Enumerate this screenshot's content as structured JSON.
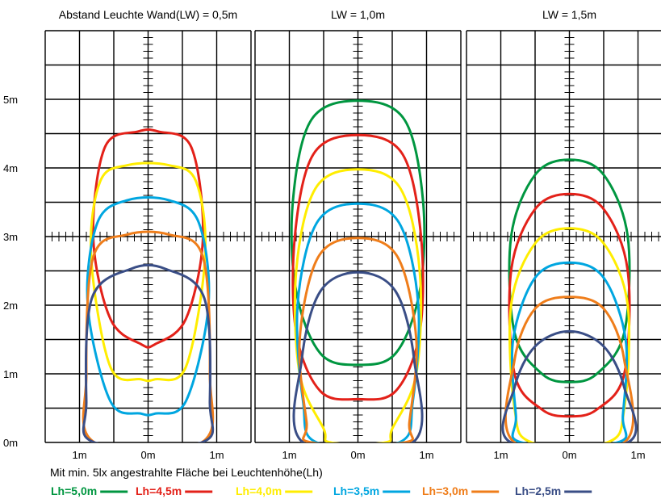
{
  "chart_data": {
    "type": "line",
    "caption": "Mit min. 5lx angestrahlte Fläche bei Leuchtenhöhe(Lh)",
    "y_ticks": [
      "0m",
      "1m",
      "2m",
      "3m",
      "4m",
      "5m"
    ],
    "x_ticks": [
      "1m",
      "0m",
      "1m"
    ],
    "ylim": [
      0,
      6
    ],
    "xlim": [
      -1.5,
      1.5
    ],
    "grid": true,
    "legend_position": "bottom",
    "panels": [
      {
        "title": "Abstand Leuchte Wand(LW) = 0,5m",
        "series": [
          {
            "name": "Lh=4,5m",
            "color": "#e32119",
            "outline": [
              [
                -0.15,
                4.53
              ],
              [
                0.15,
                4.53
              ],
              [
                0.63,
                4.3
              ],
              [
                0.8,
                3.0
              ],
              [
                0.55,
                1.8
              ],
              [
                0.1,
                1.43
              ],
              [
                -0.1,
                1.43
              ],
              [
                -0.55,
                1.8
              ],
              [
                -0.8,
                3.0
              ],
              [
                -0.63,
                4.3
              ]
            ]
          },
          {
            "name": "Lh=4,0m",
            "color": "#ffed00",
            "outline": [
              [
                -0.3,
                4.04
              ],
              [
                0.3,
                4.04
              ],
              [
                0.7,
                3.8
              ],
              [
                0.83,
                2.7
              ],
              [
                0.55,
                1.1
              ],
              [
                0.1,
                0.92
              ],
              [
                -0.1,
                0.92
              ],
              [
                -0.55,
                1.1
              ],
              [
                -0.83,
                2.7
              ],
              [
                -0.7,
                3.8
              ]
            ]
          },
          {
            "name": "Lh=3,5m",
            "color": "#00a6e0",
            "outline": [
              [
                -0.3,
                3.53
              ],
              [
                0.3,
                3.53
              ],
              [
                0.74,
                3.2
              ],
              [
                0.88,
                2.0
              ],
              [
                0.55,
                0.6
              ],
              [
                0.1,
                0.42
              ],
              [
                -0.1,
                0.42
              ],
              [
                -0.55,
                0.6
              ],
              [
                -0.88,
                2.0
              ],
              [
                -0.74,
                3.2
              ]
            ]
          },
          {
            "name": "Lh=3,0m",
            "color": "#ef7d1a",
            "outline": [
              [
                -0.3,
                3.03
              ],
              [
                0.3,
                3.03
              ],
              [
                0.8,
                2.7
              ],
              [
                0.9,
                1.0
              ],
              [
                0.78,
                0
              ],
              [
                -0.78,
                0
              ],
              [
                -0.9,
                1.0
              ],
              [
                -0.8,
                2.7
              ]
            ]
          },
          {
            "name": "Lh=2,5m",
            "color": "#3a4e86",
            "outline": [
              [
                -0.25,
                2.53
              ],
              [
                0.25,
                2.53
              ],
              [
                0.82,
                2.1
              ],
              [
                0.9,
                0.6
              ],
              [
                0.78,
                0
              ],
              [
                -0.78,
                0
              ],
              [
                -0.9,
                0.6
              ],
              [
                -0.82,
                2.1
              ]
            ]
          }
        ]
      },
      {
        "title": "LW = 1,0m",
        "series": [
          {
            "name": "Lh=5,0m",
            "color": "#009640",
            "outline": [
              [
                0,
                4.98
              ],
              [
                0.68,
                4.7
              ],
              [
                0.95,
                3.5
              ],
              [
                0.9,
                2.2
              ],
              [
                0.55,
                1.3
              ],
              [
                0,
                1.13
              ],
              [
                -0.55,
                1.3
              ],
              [
                -0.9,
                2.2
              ],
              [
                -0.95,
                3.5
              ],
              [
                -0.68,
                4.7
              ]
            ]
          },
          {
            "name": "Lh=4,5m",
            "color": "#e32119",
            "outline": [
              [
                0,
                4.48
              ],
              [
                0.65,
                4.2
              ],
              [
                0.92,
                3.0
              ],
              [
                0.9,
                1.6
              ],
              [
                0.55,
                0.75
              ],
              [
                0,
                0.63
              ],
              [
                -0.55,
                0.75
              ],
              [
                -0.9,
                1.6
              ],
              [
                -0.92,
                3.0
              ],
              [
                -0.65,
                4.2
              ]
            ]
          },
          {
            "name": "Lh=4,0m",
            "color": "#ffed00",
            "outline": [
              [
                0,
                3.98
              ],
              [
                0.62,
                3.7
              ],
              [
                0.9,
                2.5
              ],
              [
                0.85,
                1.0
              ],
              [
                0.5,
                0.2
              ],
              [
                0.4,
                0
              ],
              [
                -0.4,
                0
              ],
              [
                -0.5,
                0.2
              ],
              [
                -0.85,
                1.0
              ],
              [
                -0.9,
                2.5
              ],
              [
                -0.62,
                3.7
              ]
            ]
          },
          {
            "name": "Lh=3,5m",
            "color": "#00a6e0",
            "outline": [
              [
                0,
                3.48
              ],
              [
                0.6,
                3.2
              ],
              [
                0.88,
                2.0
              ],
              [
                0.8,
                0.6
              ],
              [
                0.6,
                0
              ],
              [
                -0.6,
                0
              ],
              [
                -0.8,
                0.6
              ],
              [
                -0.88,
                2.0
              ],
              [
                -0.6,
                3.2
              ]
            ]
          },
          {
            "name": "Lh=3,0m",
            "color": "#ef7d1a",
            "outline": [
              [
                0,
                2.98
              ],
              [
                0.58,
                2.7
              ],
              [
                0.85,
                1.5
              ],
              [
                0.75,
                0.3
              ],
              [
                0.68,
                0
              ],
              [
                -0.68,
                0
              ],
              [
                -0.75,
                0.3
              ],
              [
                -0.85,
                1.5
              ],
              [
                -0.58,
                2.7
              ]
            ]
          },
          {
            "name": "Lh=2,5m",
            "color": "#3a4e86",
            "outline": [
              [
                0,
                2.48
              ],
              [
                0.55,
                2.2
              ],
              [
                0.82,
                1.2
              ],
              [
                0.8,
                0
              ],
              [
                -0.8,
                0
              ],
              [
                -0.82,
                1.2
              ],
              [
                -0.55,
                2.2
              ]
            ]
          }
        ]
      },
      {
        "title": "LW = 1,5m",
        "series": [
          {
            "name": "Lh=5,0m",
            "color": "#009640",
            "outline": [
              [
                0,
                4.12
              ],
              [
                0.5,
                3.9
              ],
              [
                0.85,
                3.0
              ],
              [
                0.8,
                1.6
              ],
              [
                0.4,
                1.0
              ],
              [
                0,
                0.88
              ],
              [
                -0.4,
                1.0
              ],
              [
                -0.8,
                1.6
              ],
              [
                -0.85,
                3.0
              ],
              [
                -0.5,
                3.9
              ]
            ]
          },
          {
            "name": "Lh=4,5m",
            "color": "#e32119",
            "outline": [
              [
                0,
                3.62
              ],
              [
                0.5,
                3.4
              ],
              [
                0.85,
                2.5
              ],
              [
                0.8,
                1.0
              ],
              [
                0.4,
                0.48
              ],
              [
                0,
                0.38
              ],
              [
                -0.4,
                0.48
              ],
              [
                -0.8,
                1.0
              ],
              [
                -0.85,
                2.5
              ],
              [
                -0.5,
                3.4
              ]
            ]
          },
          {
            "name": "Lh=4,0m",
            "color": "#ffed00",
            "outline": [
              [
                0,
                3.12
              ],
              [
                0.5,
                2.9
              ],
              [
                0.85,
                2.0
              ],
              [
                0.8,
                0.5
              ],
              [
                0.55,
                0
              ],
              [
                -0.55,
                0
              ],
              [
                -0.8,
                0.5
              ],
              [
                -0.85,
                2.0
              ],
              [
                -0.5,
                2.9
              ]
            ]
          },
          {
            "name": "Lh=3,5m",
            "color": "#00a6e0",
            "outline": [
              [
                0,
                2.62
              ],
              [
                0.5,
                2.4
              ],
              [
                0.82,
                1.5
              ],
              [
                0.78,
                0.4
              ],
              [
                0.7,
                0
              ],
              [
                -0.7,
                0
              ],
              [
                -0.78,
                0.4
              ],
              [
                -0.82,
                1.5
              ],
              [
                -0.5,
                2.4
              ]
            ]
          },
          {
            "name": "Lh=3,0m",
            "color": "#ef7d1a",
            "outline": [
              [
                0,
                2.12
              ],
              [
                0.5,
                1.95
              ],
              [
                0.8,
                1.2
              ],
              [
                0.8,
                0
              ],
              [
                -0.8,
                0
              ],
              [
                -0.8,
                1.2
              ],
              [
                -0.5,
                1.95
              ]
            ]
          },
          {
            "name": "Lh=2,5m",
            "color": "#3a4e86",
            "outline": [
              [
                0,
                1.62
              ],
              [
                0.5,
                1.4
              ],
              [
                0.8,
                0.8
              ],
              [
                0.85,
                0
              ],
              [
                -0.85,
                0
              ],
              [
                -0.8,
                0.8
              ],
              [
                -0.5,
                1.4
              ]
            ]
          }
        ]
      }
    ],
    "legend": [
      {
        "label": "Lh=5,0m",
        "color": "#009640"
      },
      {
        "label": "Lh=4,5m",
        "color": "#e32119"
      },
      {
        "label": "Lh=4,0m",
        "color": "#ffed00"
      },
      {
        "label": "Lh=3,5m",
        "color": "#00a6e0"
      },
      {
        "label": "Lh=3,0m",
        "color": "#ef7d1a"
      },
      {
        "label": "Lh=2,5m",
        "color": "#3a4e86"
      }
    ]
  }
}
